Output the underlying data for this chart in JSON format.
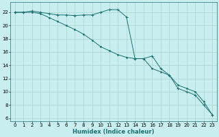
{
  "xlabel": "Humidex (Indice chaleur)",
  "bg_color": "#c8eef0",
  "grid_color": "#b0d8d0",
  "line_color": "#1a7070",
  "line1_plus": {
    "x": [
      0,
      1,
      2,
      3,
      4,
      5,
      6,
      7,
      8,
      9,
      10,
      11,
      12,
      13,
      14,
      15,
      16,
      17,
      18,
      19,
      20,
      21,
      22,
      23
    ],
    "y": [
      22,
      22,
      22.2,
      22,
      21.8,
      21.6,
      21.6,
      21.5,
      21.6,
      21.6,
      22,
      22.4,
      22.4,
      21.3,
      15,
      15,
      15.4,
      13.5,
      12.5,
      10.5,
      10.0,
      9.5,
      8.0,
      6.5
    ]
  },
  "line2_dot": {
    "x": [
      0,
      1,
      2,
      3,
      4,
      5,
      6,
      7,
      8,
      9,
      10,
      11,
      12,
      13,
      14,
      15,
      16,
      17,
      18,
      19,
      20,
      21,
      22,
      23
    ],
    "y": [
      22,
      22,
      22,
      21.8,
      21.2,
      20.6,
      20.0,
      19.4,
      18.7,
      17.8,
      16.8,
      16.2,
      15.6,
      15.2,
      15.0,
      15.0,
      13.5,
      13.0,
      12.5,
      11.0,
      10.5,
      10.0,
      8.5,
      6.5
    ]
  },
  "ylim": [
    5.5,
    23.5
  ],
  "xlim": [
    -0.5,
    23.5
  ],
  "yticks": [
    6,
    8,
    10,
    12,
    14,
    16,
    18,
    20,
    22
  ],
  "xticks": [
    0,
    1,
    2,
    3,
    4,
    5,
    6,
    7,
    8,
    9,
    10,
    11,
    12,
    13,
    14,
    15,
    16,
    17,
    18,
    19,
    20,
    21,
    22,
    23
  ],
  "tick_fontsize": 5.0,
  "xlabel_fontsize": 6.0
}
